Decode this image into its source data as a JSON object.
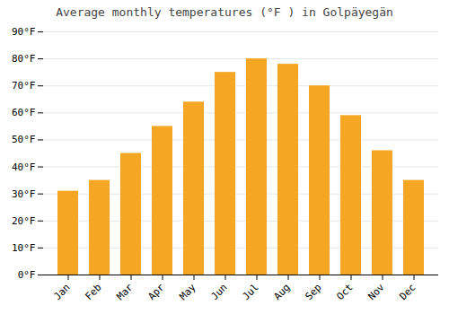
{
  "chart_data": {
    "type": "bar",
    "title": "Average monthly temperatures (°F ) in Golpäyegän",
    "categories": [
      "Jan",
      "Feb",
      "Mar",
      "Apr",
      "May",
      "Jun",
      "Jul",
      "Aug",
      "Sep",
      "Oct",
      "Nov",
      "Dec"
    ],
    "values": [
      31,
      35,
      45,
      55,
      64,
      75,
      80,
      78,
      70,
      59,
      46,
      35
    ],
    "color": "#F5A623",
    "ylim": [
      0,
      90
    ],
    "yticks": [
      {
        "value": 0,
        "label": "0°F"
      },
      {
        "value": 10,
        "label": "10°F"
      },
      {
        "value": 20,
        "label": "20°F"
      },
      {
        "value": 30,
        "label": "30°F"
      },
      {
        "value": 40,
        "label": "40°F"
      },
      {
        "value": 50,
        "label": "50°F"
      },
      {
        "value": 60,
        "label": "60°F"
      },
      {
        "value": 70,
        "label": "70°F"
      },
      {
        "value": 80,
        "label": "80°F"
      },
      {
        "value": 90,
        "label": "90°F"
      }
    ],
    "grid": true
  }
}
